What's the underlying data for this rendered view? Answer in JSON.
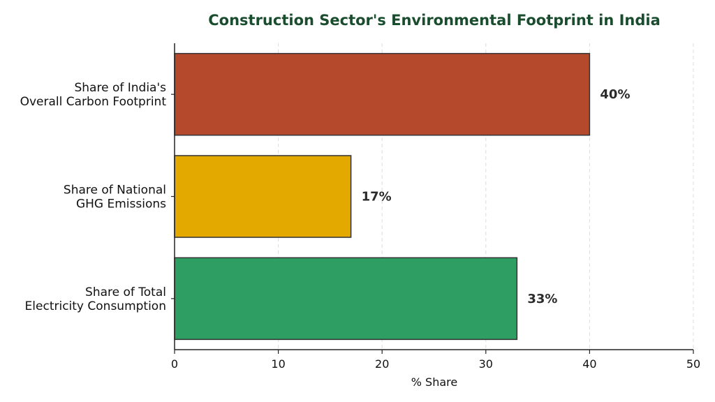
{
  "chart_data": {
    "type": "bar",
    "orientation": "horizontal",
    "title": "Construction Sector's Environmental Footprint in India",
    "xlabel": "% Share",
    "ylabel": "",
    "xlim": [
      0,
      50
    ],
    "xticks": [
      0,
      10,
      20,
      30,
      40,
      50
    ],
    "grid": "vertical-dashed",
    "categories": [
      [
        "Share of India's",
        "Overall Carbon Footprint"
      ],
      [
        "Share of National",
        "GHG Emissions"
      ],
      [
        "Share of Total",
        "Electricity Consumption"
      ]
    ],
    "values": [
      40,
      17,
      33
    ],
    "value_labels": [
      "40%",
      "17%",
      "33%"
    ],
    "colors": [
      "#b5492c",
      "#e3a900",
      "#2f9e63"
    ],
    "title_color": "#1a4d2e"
  }
}
